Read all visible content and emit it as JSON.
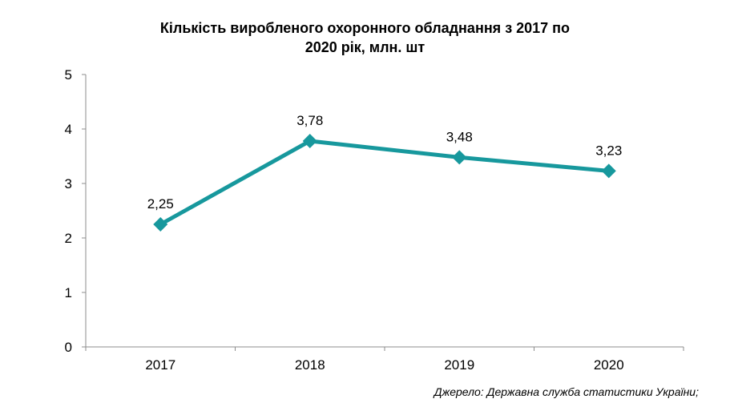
{
  "chart_data": {
    "type": "line",
    "title": "Кількість виробленого охоронного обладнання з 2017 по 2020 рік, млн. шт",
    "title_lines": [
      "Кількість  виробленого  охоронного  обладнання  з 2017 по",
      "2020 рік,  млн. шт"
    ],
    "categories": [
      "2017",
      "2018",
      "2019",
      "2020"
    ],
    "series": [
      {
        "values": [
          2.25,
          3.78,
          3.48,
          3.23
        ],
        "labels": [
          "2,25",
          "3,78",
          "3,48",
          "3,23"
        ],
        "color": "#17989D",
        "marker": "diamond"
      }
    ],
    "xlabel": "",
    "ylabel": "",
    "ylim": [
      0,
      5
    ],
    "yticks": [
      0,
      1,
      2,
      3,
      4,
      5
    ],
    "grid": false,
    "legend": "none"
  },
  "source": "Джерело: Державна служба статистики України;",
  "colors": {
    "series": "#17989D",
    "axis": "#8c8c8c"
  }
}
